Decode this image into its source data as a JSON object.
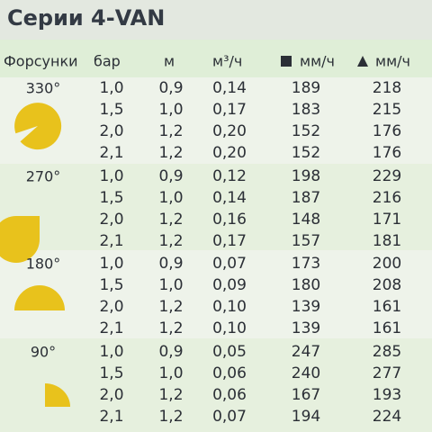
{
  "header": {
    "title": "Серии 4-VAN"
  },
  "table": {
    "columns": [
      "Форсунки",
      "бар",
      "м",
      "м³/ч",
      "мм/ч",
      "мм/ч"
    ],
    "groups": [
      {
        "angle": "330°",
        "rows": [
          [
            "1,0",
            "0,9",
            "0,14",
            "189",
            "218"
          ],
          [
            "1,5",
            "1,0",
            "0,17",
            "183",
            "215"
          ],
          [
            "2,0",
            "1,2",
            "0,20",
            "152",
            "176"
          ],
          [
            "2,1",
            "1,2",
            "0,20",
            "152",
            "176"
          ]
        ]
      },
      {
        "angle": "270°",
        "rows": [
          [
            "1,0",
            "0,9",
            "0,12",
            "198",
            "229"
          ],
          [
            "1,5",
            "1,0",
            "0,14",
            "187",
            "216"
          ],
          [
            "2,0",
            "1,2",
            "0,16",
            "148",
            "171"
          ],
          [
            "2,1",
            "1,2",
            "0,17",
            "157",
            "181"
          ]
        ]
      },
      {
        "angle": "180°",
        "rows": [
          [
            "1,0",
            "0,9",
            "0,07",
            "173",
            "200"
          ],
          [
            "1,5",
            "1,0",
            "0,09",
            "180",
            "208"
          ],
          [
            "2,0",
            "1,2",
            "0,10",
            "139",
            "161"
          ],
          [
            "2,1",
            "1,2",
            "0,10",
            "139",
            "161"
          ]
        ]
      },
      {
        "angle": "90°",
        "rows": [
          [
            "1,0",
            "0,9",
            "0,05",
            "247",
            "285"
          ],
          [
            "1,5",
            "1,0",
            "0,06",
            "240",
            "277"
          ],
          [
            "2,0",
            "1,2",
            "0,06",
            "167",
            "193"
          ],
          [
            "2,1",
            "1,2",
            "0,07",
            "194",
            "224"
          ]
        ]
      }
    ]
  }
}
